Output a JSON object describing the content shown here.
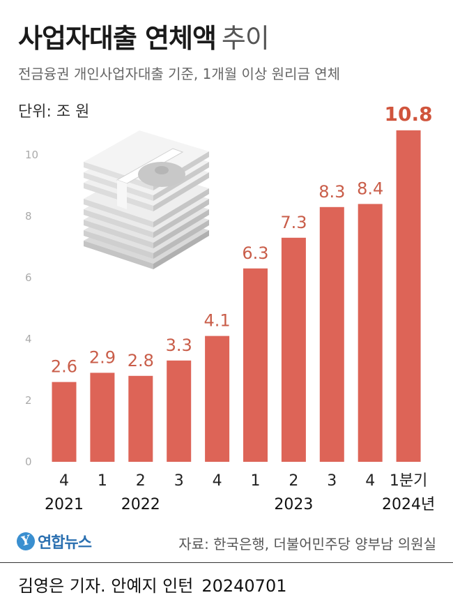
{
  "title": "사업자대출 연체액",
  "title_suffix": "추이",
  "subtitle": "전금융권 개인사업자대출 기준, 1개월 이상 원리금 연체",
  "unit": "단위: 조 원",
  "source": "자료: 한국은행, 더불어민주당 양부남 의원실",
  "logo_text": "연합뉴스",
  "credit": "김영은 기자. 안예지 인턴",
  "date": "20240701",
  "colors": {
    "bar": "#dd6457",
    "value_label": "#c95d49",
    "value_label_emphasis": "#d0543c",
    "axis_text": "#aaaaaa"
  },
  "illustration": "banknote-stack-icon",
  "chart_data": {
    "type": "bar",
    "title": "사업자대출 연체액 추이",
    "xlabel": "",
    "ylabel": "",
    "ylim": [
      0,
      11
    ],
    "yticks": [
      0,
      2,
      4,
      6,
      8,
      10
    ],
    "grid": false,
    "legend": "none",
    "categories": [
      "4",
      "1",
      "2",
      "3",
      "4",
      "1",
      "2",
      "3",
      "4",
      "1분기"
    ],
    "years": [
      {
        "label": "2021",
        "start": 0,
        "end": 0
      },
      {
        "label": "2022",
        "start": 1,
        "end": 3
      },
      {
        "label": "2023",
        "start": 5,
        "end": 7
      },
      {
        "label": "2024년",
        "start": 9,
        "end": 9
      }
    ],
    "values": [
      2.6,
      2.9,
      2.8,
      3.3,
      4.1,
      6.3,
      7.3,
      8.3,
      8.4,
      10.8
    ],
    "value_labels": [
      "2.6",
      "2.9",
      "2.8",
      "3.3",
      "4.1",
      "6.3",
      "7.3",
      "8.3",
      "8.4",
      "10.8"
    ]
  }
}
